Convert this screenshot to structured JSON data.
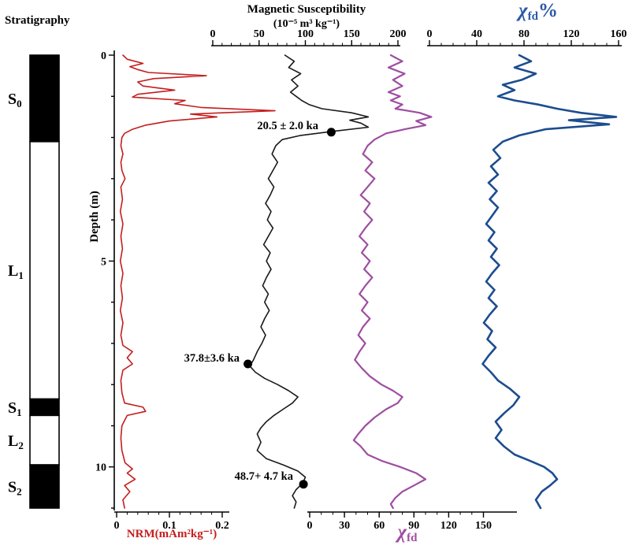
{
  "titles": {
    "ms_line1": "Magnetic Susceptibility",
    "ms_line2": "(10⁻⁵ m³ kg⁻¹)",
    "chi": "χ",
    "fd_sub": "fd",
    "pct": "%",
    "depth": "Depth (m)",
    "nrm": "NRM(mAm²kg⁻¹)"
  },
  "strat": {
    "label": "Stratigraphy",
    "units": [
      {
        "name": "S0",
        "symbol": "S",
        "subscript": "0",
        "fill": "black",
        "top_depth": 0,
        "bottom_depth": 2.1
      },
      {
        "name": "L1",
        "symbol": "L",
        "subscript": "1",
        "fill": "white",
        "top_depth": 2.1,
        "bottom_depth": 8.35
      },
      {
        "name": "S1",
        "symbol": "S",
        "subscript": "1",
        "fill": "black",
        "top_depth": 8.35,
        "bottom_depth": 8.75
      },
      {
        "name": "L2",
        "symbol": "L",
        "subscript": "2",
        "fill": "white",
        "top_depth": 8.75,
        "bottom_depth": 9.95
      },
      {
        "name": "S2",
        "symbol": "S",
        "subscript": "2",
        "fill": "black",
        "top_depth": 9.95,
        "bottom_depth": 11
      }
    ]
  },
  "colors": {
    "nrm": "#c41e1e",
    "ms": "#1a1a1a",
    "xfd": "#9e4ea0",
    "xfd_pct": "#1c4d8f",
    "title_blue": "#2b57a8"
  },
  "chart_data": {
    "type": "line",
    "profile": "depth",
    "depth_axis": {
      "label": "Depth (m)",
      "min": 0,
      "max": 11,
      "ticks": [
        0,
        5,
        10
      ],
      "minor_step": 1
    },
    "value_axes": {
      "nrm": {
        "side": "bottom",
        "ticks": [
          0,
          0.1,
          0.2
        ],
        "minor_step": 0.02,
        "label": "NRM(mAm²kg⁻¹)"
      },
      "ms": {
        "side": "top",
        "ticks": [
          0,
          50,
          100,
          150,
          200
        ],
        "minor_step": 10,
        "label": "Magnetic Susceptibility (10⁻⁵ m³ kg⁻¹)"
      },
      "xfd": {
        "side": "bottom",
        "ticks": [
          0,
          30,
          60,
          90,
          120,
          150
        ],
        "minor_step": 10,
        "label": "χfd"
      },
      "xfd_pct": {
        "side": "top",
        "ticks": [
          0,
          40,
          80,
          120,
          160
        ],
        "minor_step": 10,
        "label": "χfd%"
      }
    },
    "series": [
      {
        "key": "nrm",
        "name": "NRM",
        "color": "#c41e1e",
        "width": 1.6,
        "points": [
          [
            0,
            0.012
          ],
          [
            0.1,
            0.02
          ],
          [
            0.2,
            0.05
          ],
          [
            0.28,
            0.025
          ],
          [
            0.35,
            0.04
          ],
          [
            0.42,
            0.06
          ],
          [
            0.5,
            0.17
          ],
          [
            0.57,
            0.07
          ],
          [
            0.65,
            0.04
          ],
          [
            0.75,
            0.05
          ],
          [
            0.85,
            0.11
          ],
          [
            0.95,
            0.04
          ],
          [
            1.02,
            0.03
          ],
          [
            1.1,
            0.13
          ],
          [
            1.18,
            0.11
          ],
          [
            1.27,
            0.16
          ],
          [
            1.35,
            0.3
          ],
          [
            1.43,
            0.14
          ],
          [
            1.5,
            0.19
          ],
          [
            1.6,
            0.1
          ],
          [
            1.7,
            0.055
          ],
          [
            1.8,
            0.03
          ],
          [
            1.9,
            0.015
          ],
          [
            2,
            0.01
          ],
          [
            2.2,
            0.008
          ],
          [
            2.4,
            0.012
          ],
          [
            2.6,
            0.008
          ],
          [
            2.8,
            0.01
          ],
          [
            3,
            0.016
          ],
          [
            3.2,
            0.008
          ],
          [
            3.5,
            0.011
          ],
          [
            3.8,
            0.007
          ],
          [
            4.1,
            0.012
          ],
          [
            4.4,
            0.008
          ],
          [
            4.7,
            0.011
          ],
          [
            5,
            0.007
          ],
          [
            5.3,
            0.012
          ],
          [
            5.6,
            0.008
          ],
          [
            5.9,
            0.011
          ],
          [
            6.2,
            0.007
          ],
          [
            6.5,
            0.012
          ],
          [
            6.8,
            0.008
          ],
          [
            7.05,
            0.012
          ],
          [
            7.2,
            0.03
          ],
          [
            7.35,
            0.02
          ],
          [
            7.5,
            0.03
          ],
          [
            7.65,
            0.012
          ],
          [
            7.9,
            0.008
          ],
          [
            8.2,
            0.01
          ],
          [
            8.45,
            0.015
          ],
          [
            8.55,
            0.05
          ],
          [
            8.65,
            0.055
          ],
          [
            8.75,
            0.02
          ],
          [
            9,
            0.01
          ],
          [
            9.3,
            0.008
          ],
          [
            9.6,
            0.01
          ],
          [
            9.9,
            0.016
          ],
          [
            10.05,
            0.03
          ],
          [
            10.15,
            0.02
          ],
          [
            10.3,
            0.035
          ],
          [
            10.45,
            0.015
          ],
          [
            10.6,
            0.025
          ],
          [
            10.8,
            0.012
          ],
          [
            11,
            0.015
          ]
        ]
      },
      {
        "key": "ms",
        "name": "Magnetic Susceptibility",
        "color": "#1a1a1a",
        "width": 1.6,
        "points": [
          [
            0,
            78
          ],
          [
            0.15,
            88
          ],
          [
            0.3,
            82
          ],
          [
            0.45,
            95
          ],
          [
            0.6,
            85
          ],
          [
            0.75,
            92
          ],
          [
            0.9,
            84
          ],
          [
            1,
            90
          ],
          [
            1.1,
            96
          ],
          [
            1.2,
            104
          ],
          [
            1.3,
            118
          ],
          [
            1.4,
            150
          ],
          [
            1.5,
            168
          ],
          [
            1.58,
            148
          ],
          [
            1.65,
            160
          ],
          [
            1.75,
            168
          ],
          [
            1.85,
            130
          ],
          [
            1.95,
            95
          ],
          [
            2.05,
            75
          ],
          [
            2.2,
            68
          ],
          [
            2.4,
            64
          ],
          [
            2.6,
            70
          ],
          [
            2.8,
            65
          ],
          [
            3,
            60
          ],
          [
            3.2,
            66
          ],
          [
            3.4,
            62
          ],
          [
            3.6,
            57
          ],
          [
            3.8,
            63
          ],
          [
            4,
            59
          ],
          [
            4.2,
            65
          ],
          [
            4.4,
            60
          ],
          [
            4.6,
            55
          ],
          [
            4.8,
            62
          ],
          [
            5,
            58
          ],
          [
            5.2,
            63
          ],
          [
            5.4,
            58
          ],
          [
            5.6,
            54
          ],
          [
            5.8,
            60
          ],
          [
            6,
            56
          ],
          [
            6.2,
            61
          ],
          [
            6.4,
            56
          ],
          [
            6.6,
            52
          ],
          [
            6.8,
            57
          ],
          [
            7,
            53
          ],
          [
            7.2,
            48
          ],
          [
            7.4,
            44
          ],
          [
            7.55,
            40
          ],
          [
            7.7,
            46
          ],
          [
            7.85,
            56
          ],
          [
            8,
            70
          ],
          [
            8.15,
            82
          ],
          [
            8.3,
            92
          ],
          [
            8.45,
            86
          ],
          [
            8.6,
            76
          ],
          [
            8.75,
            66
          ],
          [
            8.9,
            58
          ],
          [
            9.05,
            52
          ],
          [
            9.2,
            48
          ],
          [
            9.4,
            52
          ],
          [
            9.6,
            48
          ],
          [
            9.8,
            58
          ],
          [
            9.95,
            76
          ],
          [
            10.1,
            92
          ],
          [
            10.25,
            100
          ],
          [
            10.4,
            97
          ],
          [
            10.55,
            90
          ],
          [
            10.7,
            86
          ],
          [
            10.85,
            90
          ],
          [
            11,
            88
          ]
        ]
      },
      {
        "key": "xfd",
        "name": "χfd",
        "color": "#9e4ea0",
        "width": 2.2,
        "points": [
          [
            0,
            70
          ],
          [
            0.15,
            80
          ],
          [
            0.3,
            68
          ],
          [
            0.45,
            82
          ],
          [
            0.6,
            72
          ],
          [
            0.75,
            80
          ],
          [
            0.9,
            68
          ],
          [
            1,
            78
          ],
          [
            1.1,
            70
          ],
          [
            1.2,
            80
          ],
          [
            1.3,
            74
          ],
          [
            1.4,
            95
          ],
          [
            1.5,
            105
          ],
          [
            1.6,
            92
          ],
          [
            1.7,
            100
          ],
          [
            1.8,
            82
          ],
          [
            1.9,
            66
          ],
          [
            2.05,
            56
          ],
          [
            2.2,
            50
          ],
          [
            2.4,
            46
          ],
          [
            2.6,
            54
          ],
          [
            2.8,
            48
          ],
          [
            3,
            56
          ],
          [
            3.2,
            50
          ],
          [
            3.4,
            44
          ],
          [
            3.6,
            52
          ],
          [
            3.8,
            47
          ],
          [
            4,
            54
          ],
          [
            4.2,
            48
          ],
          [
            4.4,
            43
          ],
          [
            4.6,
            50
          ],
          [
            4.8,
            45
          ],
          [
            5,
            52
          ],
          [
            5.2,
            47
          ],
          [
            5.4,
            54
          ],
          [
            5.6,
            48
          ],
          [
            5.8,
            43
          ],
          [
            6,
            50
          ],
          [
            6.2,
            45
          ],
          [
            6.4,
            52
          ],
          [
            6.6,
            46
          ],
          [
            6.8,
            42
          ],
          [
            7,
            48
          ],
          [
            7.2,
            43
          ],
          [
            7.4,
            39
          ],
          [
            7.6,
            45
          ],
          [
            7.8,
            52
          ],
          [
            8,
            62
          ],
          [
            8.15,
            72
          ],
          [
            8.3,
            80
          ],
          [
            8.45,
            76
          ],
          [
            8.6,
            66
          ],
          [
            8.8,
            56
          ],
          [
            9,
            48
          ],
          [
            9.2,
            42
          ],
          [
            9.35,
            38
          ],
          [
            9.5,
            44
          ],
          [
            9.7,
            50
          ],
          [
            9.85,
            62
          ],
          [
            10,
            78
          ],
          [
            10.15,
            92
          ],
          [
            10.3,
            100
          ],
          [
            10.45,
            90
          ],
          [
            10.6,
            80
          ],
          [
            10.75,
            74
          ],
          [
            10.9,
            70
          ],
          [
            11,
            72
          ]
        ]
      },
      {
        "key": "xfd_pct",
        "name": "χfd%",
        "color": "#1c4d8f",
        "width": 2.6,
        "points": [
          [
            0,
            76
          ],
          [
            0.15,
            86
          ],
          [
            0.3,
            72
          ],
          [
            0.45,
            90
          ],
          [
            0.6,
            78
          ],
          [
            0.72,
            62
          ],
          [
            0.85,
            72
          ],
          [
            1,
            58
          ],
          [
            1.1,
            72
          ],
          [
            1.2,
            92
          ],
          [
            1.3,
            108
          ],
          [
            1.4,
            128
          ],
          [
            1.5,
            158
          ],
          [
            1.58,
            118
          ],
          [
            1.68,
            152
          ],
          [
            1.8,
            98
          ],
          [
            1.95,
            76
          ],
          [
            2.1,
            62
          ],
          [
            2.3,
            54
          ],
          [
            2.5,
            60
          ],
          [
            2.7,
            52
          ],
          [
            2.9,
            58
          ],
          [
            3.1,
            50
          ],
          [
            3.3,
            57
          ],
          [
            3.5,
            51
          ],
          [
            3.7,
            58
          ],
          [
            3.9,
            53
          ],
          [
            4.1,
            48
          ],
          [
            4.3,
            55
          ],
          [
            4.5,
            50
          ],
          [
            4.7,
            57
          ],
          [
            4.9,
            52
          ],
          [
            5.1,
            59
          ],
          [
            5.3,
            53
          ],
          [
            5.5,
            48
          ],
          [
            5.7,
            55
          ],
          [
            5.9,
            50
          ],
          [
            6.1,
            57
          ],
          [
            6.3,
            51
          ],
          [
            6.5,
            46
          ],
          [
            6.7,
            53
          ],
          [
            6.9,
            49
          ],
          [
            7.1,
            56
          ],
          [
            7.3,
            50
          ],
          [
            7.5,
            45
          ],
          [
            7.7,
            52
          ],
          [
            7.9,
            58
          ],
          [
            8.1,
            68
          ],
          [
            8.3,
            76
          ],
          [
            8.5,
            71
          ],
          [
            8.7,
            63
          ],
          [
            8.9,
            56
          ],
          [
            9.1,
            61
          ],
          [
            9.3,
            56
          ],
          [
            9.5,
            63
          ],
          [
            9.7,
            72
          ],
          [
            9.85,
            85
          ],
          [
            10,
            97
          ],
          [
            10.15,
            104
          ],
          [
            10.3,
            108
          ],
          [
            10.45,
            102
          ],
          [
            10.6,
            95
          ],
          [
            10.8,
            90
          ],
          [
            11,
            94
          ]
        ]
      }
    ],
    "annotations": [
      {
        "text": "20.5 ± 2.0 ka",
        "dot_depth": 1.87,
        "dot_value": 128,
        "value_axis": "ms"
      },
      {
        "text": "37.8±3.6 ka",
        "dot_depth": 7.5,
        "dot_value": 38,
        "value_axis": "ms"
      },
      {
        "text": "48.7+ 4.7 ka",
        "dot_depth": 10.42,
        "dot_value": 98,
        "value_axis": "ms"
      }
    ]
  }
}
